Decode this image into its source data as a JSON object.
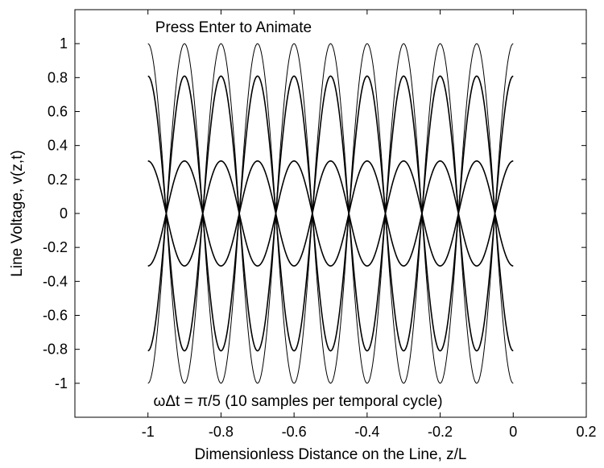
{
  "chart_data": {
    "type": "line",
    "title": "",
    "xlabel": "Dimensionless Distance on the Line, z/L",
    "ylabel": "Line Voltage, v(z,t)",
    "xlim": [
      -1.2,
      0.2
    ],
    "ylim": [
      -1.2,
      1.2
    ],
    "x_ticks": [
      -1,
      -0.8,
      -0.6,
      -0.4,
      -0.2,
      0,
      0.2
    ],
    "x_tick_labels": [
      "-1",
      "-0.8",
      "-0.6",
      "-0.4",
      "-0.2",
      "0",
      "0.2"
    ],
    "y_ticks": [
      1,
      0.8,
      0.6,
      0.4,
      0.2,
      0,
      -0.2,
      -0.4,
      -0.6,
      -0.8,
      -1
    ],
    "y_tick_labels": [
      "1",
      "0.8",
      "0.6",
      "0.4",
      "0.2",
      "0",
      "-0.2",
      "-0.4",
      "-0.6",
      "-0.8",
      "-1"
    ],
    "grid": false,
    "annotations": [
      {
        "text": "Press Enter to Animate",
        "x": -0.98,
        "y": 1.1
      },
      {
        "text": "ωΔt = π/5 (10 samples per temporal cycle)",
        "x": -0.985,
        "y": -1.1
      }
    ],
    "wave": {
      "description_free": true,
      "z_start": -1.0,
      "z_end": 0.0,
      "wavelength": 0.2,
      "node_z": [
        -0.866,
        -0.676,
        -0.486,
        -0.276,
        -0.096
      ],
      "crest_z": [
        -0.966,
        -0.766,
        -0.566,
        -0.366,
        -0.166,
        0.0
      ]
    },
    "series": [
      {
        "amplitude": 1.0,
        "line_color": "#000000"
      },
      {
        "amplitude": 0.809,
        "line_color": "#000000"
      },
      {
        "amplitude": 0.309,
        "line_color": "#000000"
      },
      {
        "amplitude": -0.309,
        "line_color": "#000000"
      },
      {
        "amplitude": -0.809,
        "line_color": "#000000"
      },
      {
        "amplitude": -1.0,
        "line_color": "#000000"
      }
    ]
  }
}
